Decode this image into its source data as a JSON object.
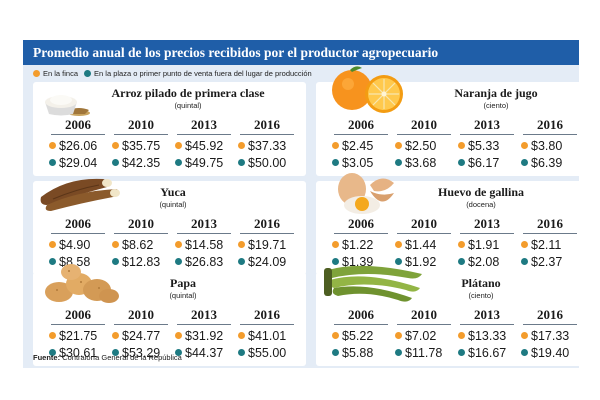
{
  "header": {
    "title": "Promedio anual de los precios recibidos por el productor agropecuario"
  },
  "legend": {
    "farm": "En la finca",
    "market": "En la plaza o primer punto de venta fuera del lugar de producción"
  },
  "colors": {
    "farm": "#f39c2c",
    "market": "#1e7a82",
    "header": "#1f5ea8"
  },
  "chart_data": {
    "type": "table",
    "title": "Promedio anual de los precios recibidos por el productor agropecuario",
    "years": [
      "2006",
      "2010",
      "2013",
      "2016"
    ],
    "series_names": [
      "En la finca",
      "En la plaza o primer punto de venta fuera del lugar de producción"
    ],
    "products": [
      {
        "name": "Arroz pilado de primera clase",
        "unit": "(quintal)",
        "icon": "rice-bowl-icon",
        "farm": [
          "$26.06",
          "$35.75",
          "$45.92",
          "$37.33"
        ],
        "market": [
          "$29.04",
          "$42.35",
          "$49.75",
          "$50.00"
        ]
      },
      {
        "name": "Naranja de jugo",
        "unit": "(ciento)",
        "icon": "orange-icon",
        "farm": [
          "$2.45",
          "$2.50",
          "$5.33",
          "$3.80"
        ],
        "market": [
          "$3.05",
          "$3.68",
          "$6.17",
          "$6.39"
        ]
      },
      {
        "name": "Yuca",
        "unit": "(quintal)",
        "icon": "cassava-icon",
        "farm": [
          "$4.90",
          "$8.62",
          "$14.58",
          "$19.71"
        ],
        "market": [
          "$8.58",
          "$12.83",
          "$26.83",
          "$24.09"
        ]
      },
      {
        "name": "Huevo de gallina",
        "unit": "(docena)",
        "icon": "egg-icon",
        "farm": [
          "$1.22",
          "$1.44",
          "$1.91",
          "$2.11"
        ],
        "market": [
          "$1.39",
          "$1.92",
          "$2.08",
          "$2.37"
        ]
      },
      {
        "name": "Papa",
        "unit": "(quintal)",
        "icon": "potato-icon",
        "farm": [
          "$21.75",
          "$24.77",
          "$31.92",
          "$41.01"
        ],
        "market": [
          "$30.61",
          "$53.29",
          "$44.37",
          "$55.00"
        ]
      },
      {
        "name": "Plátano",
        "unit": "(ciento)",
        "icon": "plantain-icon",
        "farm": [
          "$5.22",
          "$7.02",
          "$13.33",
          "$17.33"
        ],
        "market": [
          "$5.88",
          "$11.78",
          "$16.67",
          "$19.40"
        ]
      }
    ]
  },
  "source": {
    "label": "Fuente:",
    "text": "Contraloría General de la República"
  }
}
